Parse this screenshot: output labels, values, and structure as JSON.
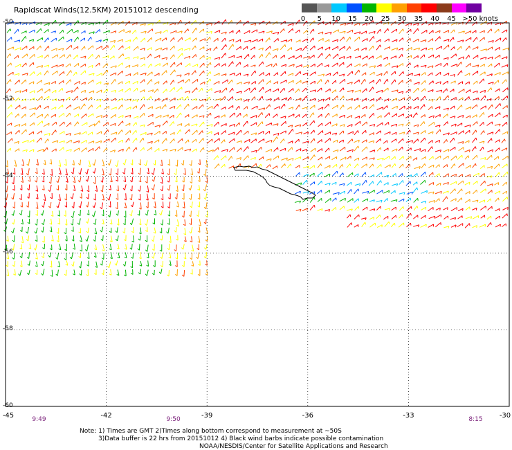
{
  "title": "Rapidscat Winds(12.5KM) 20151012 descending",
  "legend": {
    "labels": [
      "0",
      "5",
      "10",
      "15",
      "20",
      "25",
      "30",
      "35",
      "40",
      "45",
      ">50 knots"
    ],
    "colors": [
      "#555555",
      "#999999",
      "#00c8ff",
      "#0050ff",
      "#00b400",
      "#ffff00",
      "#ffa000",
      "#ff4000",
      "#ff0000",
      "#8b3a1a",
      "#ff00ff",
      "#7000a0"
    ]
  },
  "axes": {
    "lat_labels": [
      "-50",
      "-52",
      "-54",
      "-56",
      "-58",
      "-60"
    ],
    "lon_labels": [
      "-45",
      "-42",
      "-39",
      "-36",
      "-33",
      "-30"
    ],
    "lat_values": [
      -50,
      -52,
      -54,
      -56,
      -58,
      -60
    ],
    "lon_values": [
      -45,
      -42,
      -39,
      -36,
      -33,
      -30
    ]
  },
  "times": [
    {
      "label": "9:49",
      "lon": -44.0
    },
    {
      "label": "9:50",
      "lon": -40.0
    },
    {
      "label": "8:15",
      "lon": -31.0
    }
  ],
  "notes": {
    "line1": "Note: 1) Times are GMT 2)Times along bottom correspond to measurement at ~50S",
    "line2": "3)Data buffer is 22 hrs from 20151012 4) Black wind barbs indicate possible contamination",
    "line3": "NOAA/NESDIS/Center for Satellite Applications and Research"
  },
  "map_data": {
    "lon_range": [
      -45,
      -30
    ],
    "lat_range": [
      -60,
      -50
    ],
    "grid": true
  }
}
